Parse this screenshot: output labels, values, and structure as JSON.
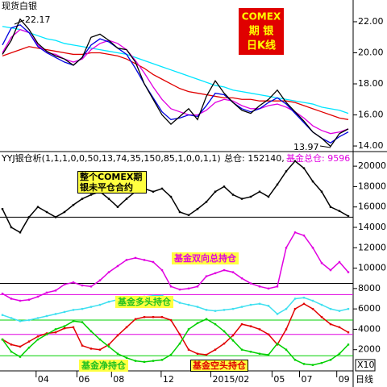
{
  "chart_data": [
    {
      "type": "line",
      "title": "现货白银",
      "high_label": "22.17",
      "low_label": "13.97",
      "badge": [
        "COMEX",
        "期 银",
        "日K线"
      ],
      "xlim": [
        0,
        40
      ],
      "x": [
        0,
        1,
        2,
        3,
        4,
        5,
        6,
        7,
        8,
        9,
        10,
        11,
        12,
        13,
        14,
        15,
        16,
        17,
        18,
        19,
        20,
        21,
        22,
        23,
        24,
        25,
        26,
        27,
        28,
        29,
        30,
        31,
        32,
        33,
        34,
        35,
        36,
        37,
        38,
        39
      ],
      "ylim": [
        13.64,
        23.4
      ],
      "yticks": [
        {
          "value": 14,
          "label": "14.00"
        },
        {
          "value": 16,
          "label": "16.00"
        },
        {
          "value": 18,
          "label": "18.00"
        },
        {
          "value": 20,
          "label": "20.00"
        },
        {
          "value": 22,
          "label": "22.00"
        }
      ],
      "series": [
        {
          "color": "#00e5ff",
          "values": [
            21.7,
            21.6,
            21.5,
            21.3,
            21.1,
            20.9,
            20.8,
            20.6,
            20.5,
            20.4,
            20.3,
            20.2,
            20.1,
            20.0,
            19.9,
            19.7,
            19.5,
            19.3,
            19.1,
            18.9,
            18.7,
            18.5,
            18.3,
            18.1,
            17.9,
            17.8,
            17.6,
            17.5,
            17.4,
            17.3,
            17.2,
            17.1,
            17.0,
            16.9,
            16.8,
            16.7,
            16.5,
            16.4,
            16.3,
            16.1
          ]
        },
        {
          "color": "#e00000",
          "values": [
            19.8,
            20.0,
            20.2,
            20.4,
            20.3,
            20.2,
            20.1,
            20.0,
            19.9,
            19.9,
            20.0,
            20.0,
            19.9,
            19.8,
            19.6,
            19.3,
            19.0,
            18.6,
            18.3,
            18.0,
            17.7,
            17.5,
            17.4,
            17.3,
            17.2,
            17.1,
            17.1,
            17.0,
            17.0,
            16.9,
            16.9,
            16.9,
            16.9,
            16.8,
            16.6,
            16.4,
            16.2,
            16.0,
            15.8,
            15.7
          ]
        },
        {
          "color": "#e000e0",
          "values": [
            20.0,
            21.0,
            21.5,
            21.3,
            20.5,
            20.0,
            19.9,
            19.6,
            19.4,
            19.6,
            20.2,
            20.6,
            20.8,
            20.6,
            20.2,
            19.5,
            18.7,
            17.8,
            17.0,
            16.4,
            16.2,
            16.0,
            16.0,
            16.3,
            16.8,
            17.0,
            16.9,
            16.6,
            16.4,
            16.4,
            16.6,
            16.7,
            16.5,
            16.2,
            15.8,
            15.3,
            15.0,
            14.8,
            14.9,
            15.1
          ]
        },
        {
          "color": "#0000e0",
          "values": [
            20.5,
            21.6,
            21.8,
            21.3,
            20.4,
            20.0,
            19.7,
            19.4,
            19.2,
            19.7,
            20.5,
            20.9,
            20.7,
            20.3,
            19.9,
            19.0,
            18.0,
            17.1,
            16.2,
            15.7,
            15.8,
            16.0,
            15.9,
            16.6,
            17.4,
            17.3,
            16.8,
            16.4,
            16.2,
            16.4,
            16.8,
            17.1,
            16.7,
            16.1,
            15.5,
            14.9,
            14.5,
            14.2,
            14.6,
            14.9
          ]
        },
        {
          "color": "#000000",
          "values": [
            19.9,
            20.8,
            22.17,
            21.5,
            20.6,
            20.1,
            19.8,
            19.6,
            19.2,
            19.7,
            21.0,
            21.2,
            20.8,
            20.3,
            20.2,
            19.4,
            18.0,
            17.0,
            16.0,
            15.4,
            15.9,
            16.4,
            15.7,
            17.2,
            18.2,
            17.4,
            16.8,
            16.3,
            16.1,
            16.6,
            17.0,
            17.6,
            16.8,
            16.2,
            15.6,
            14.9,
            14.5,
            13.97,
            14.8,
            15.1
          ]
        }
      ]
    },
    {
      "type": "line",
      "title": "YYJ银仓析(1,1,1,0,0,50,13,74,35,150,85,1,0,0,1,1)",
      "total_text": "总仓: 152140,",
      "fund_text": "基金总仓: 9596",
      "scale_label": "X10",
      "period_label": "日线",
      "xlim": [
        0,
        40
      ],
      "x": [
        0,
        1,
        2,
        3,
        4,
        5,
        6,
        7,
        8,
        9,
        10,
        11,
        12,
        13,
        14,
        15,
        16,
        17,
        18,
        19,
        20,
        21,
        22,
        23,
        24,
        25,
        26,
        27,
        28,
        29,
        30,
        31,
        32,
        33,
        34,
        35,
        36,
        37,
        38,
        39
      ],
      "xticks": [
        {
          "value": 3.8,
          "label": "04"
        },
        {
          "value": 8.4,
          "label": "06"
        },
        {
          "value": 12.3,
          "label": "08"
        },
        {
          "value": 17.9,
          "label": "12"
        },
        {
          "value": 23.5,
          "label": "2015/02"
        },
        {
          "value": 30.4,
          "label": "05"
        },
        {
          "value": 33.5,
          "label": "07"
        },
        {
          "value": 37.7,
          "label": "09"
        }
      ],
      "ylim": [
        0,
        20800
      ],
      "yticks": [
        2000,
        4000,
        6000,
        8000,
        10000,
        12000,
        14000,
        16000,
        18000,
        20000
      ],
      "ref_lines": [
        {
          "value": 15000,
          "color": "#000000"
        },
        {
          "value": 8500,
          "color": "#000000"
        },
        {
          "value": 7400,
          "color": "#e000e0"
        },
        {
          "value": 4900,
          "color": "#00d000"
        },
        {
          "value": 3500,
          "color": "#e000e0"
        },
        {
          "value": 1400,
          "color": "#00d000"
        }
      ],
      "series": [
        {
          "name": "整个COMEX期银未平仓合约",
          "color": "#000000",
          "values": [
            15800,
            14000,
            13500,
            15000,
            16000,
            15500,
            15000,
            15500,
            16200,
            16800,
            17200,
            17500,
            16800,
            16000,
            16800,
            17500,
            17800,
            17500,
            17800,
            17000,
            15500,
            15200,
            15800,
            16500,
            17500,
            18000,
            17200,
            16800,
            17000,
            17500,
            17000,
            18200,
            19500,
            20500,
            19800,
            18500,
            17500,
            16000,
            15600,
            15100
          ]
        },
        {
          "name": "基金双向总持仓",
          "color": "#e000e0",
          "values": [
            7500,
            7000,
            6800,
            6900,
            7200,
            7600,
            7800,
            8400,
            8600,
            8300,
            8200,
            8800,
            9600,
            10200,
            10800,
            11000,
            10800,
            10600,
            9800,
            8200,
            7900,
            8000,
            8200,
            9200,
            9500,
            9800,
            9600,
            9000,
            8500,
            8200,
            8000,
            8200,
            12000,
            13500,
            13200,
            12000,
            10500,
            9800,
            10600,
            9600
          ]
        },
        {
          "name": "基金多头持仓",
          "color": "#40e0f0",
          "values": [
            5400,
            5100,
            4800,
            4900,
            5100,
            5300,
            5500,
            5700,
            5900,
            6000,
            6200,
            6400,
            6700,
            6900,
            7000,
            7100,
            7200,
            7300,
            7300,
            7000,
            6600,
            6400,
            6200,
            5900,
            5800,
            5900,
            6000,
            6200,
            6400,
            6500,
            6300,
            5500,
            6000,
            7000,
            7100,
            6800,
            6400,
            6000,
            5800,
            6000
          ]
        },
        {
          "name": "基金净持仓",
          "color": "#e00000",
          "values": [
            3000,
            2500,
            2300,
            2800,
            3300,
            3600,
            3700,
            4100,
            4200,
            2400,
            2100,
            2000,
            2500,
            3400,
            4200,
            5000,
            5200,
            5200,
            5200,
            4900,
            3500,
            2000,
            1600,
            1500,
            2000,
            2600,
            3400,
            4500,
            4300,
            4000,
            3500,
            2500,
            4000,
            6000,
            6500,
            6000,
            5200,
            4500,
            4200,
            3700
          ]
        },
        {
          "name": "基金空头持仓",
          "color": "#00d000",
          "values": [
            3000,
            1800,
            1300,
            2200,
            3000,
            3500,
            4000,
            4300,
            4800,
            4700,
            3800,
            3000,
            2300,
            1600,
            1200,
            900,
            800,
            900,
            1000,
            1500,
            2600,
            4000,
            4600,
            5000,
            4500,
            3800,
            2900,
            2000,
            1800,
            1600,
            1500,
            2600,
            2000,
            1000,
            600,
            500,
            700,
            1000,
            1600,
            2500
          ]
        }
      ]
    }
  ]
}
